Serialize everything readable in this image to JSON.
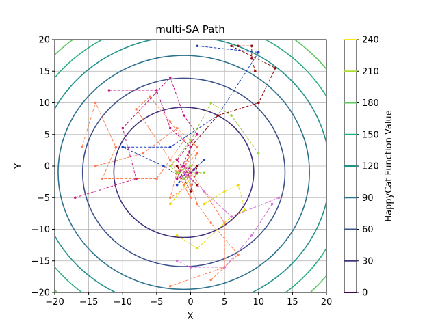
{
  "chart_data": {
    "type": "line",
    "title": "multi-SA Path",
    "xlabel": "X",
    "ylabel": "Y",
    "xlim": [
      -20,
      20
    ],
    "ylim": [
      -20,
      20
    ],
    "xticks": [
      -20,
      -15,
      -10,
      -5,
      0,
      5,
      10,
      15,
      20
    ],
    "yticks": [
      -20,
      -15,
      -10,
      -5,
      0,
      5,
      10,
      15,
      20
    ],
    "grid": true,
    "contour": {
      "center": [
        -1,
        -1
      ],
      "radii": [
        10.3,
        14.9,
        18.5,
        21.5,
        24.2,
        26.6
      ],
      "colors": [
        "#46327e",
        "#3b528b",
        "#2c728e",
        "#21918c",
        "#28ae80",
        "#5ec962"
      ]
    },
    "colorbar": {
      "label": "HappyCat Function Value",
      "ticks": [
        0,
        30,
        60,
        90,
        120,
        150,
        180,
        210,
        240
      ],
      "colors": [
        "#440154",
        "#46327e",
        "#3b528b",
        "#2c728e",
        "#21918c",
        "#28ae80",
        "#5ec962",
        "#addc30",
        "#fde725"
      ]
    },
    "series": [
      {
        "color": "#1f3fbf",
        "points": [
          [
            1,
            19
          ],
          [
            10,
            18
          ],
          [
            4,
            8
          ],
          [
            -3,
            3
          ],
          [
            -10,
            3
          ],
          [
            -4,
            0
          ],
          [
            -1,
            -2
          ],
          [
            2,
            1
          ],
          [
            -2,
            -3
          ],
          [
            0,
            0
          ],
          [
            1,
            -1
          ]
        ]
      },
      {
        "color": "#8b0000",
        "points": [
          [
            6,
            19
          ],
          [
            12.5,
            15.5
          ],
          [
            10,
            10
          ],
          [
            4,
            8
          ],
          [
            0,
            3
          ],
          [
            -1,
            -1
          ],
          [
            1,
            -3
          ],
          [
            -2,
            0
          ],
          [
            0,
            -4
          ],
          [
            1,
            0
          ],
          [
            -1,
            -2
          ]
        ]
      },
      {
        "color": "#9a0e0e",
        "points": [
          [
            7,
            19
          ],
          [
            9,
            19
          ],
          [
            9,
            17
          ],
          [
            9.5,
            15
          ]
        ]
      },
      {
        "color": "#ff7f50",
        "points": [
          [
            -16,
            3
          ],
          [
            -14,
            10
          ],
          [
            -11,
            3
          ],
          [
            -13,
            -2
          ],
          [
            -5,
            -2
          ],
          [
            -1,
            4
          ],
          [
            -3,
            7
          ],
          [
            -6,
            11
          ],
          [
            -8,
            9
          ],
          [
            -3,
            1
          ],
          [
            0,
            -5
          ],
          [
            -1,
            -3
          ],
          [
            1,
            2
          ],
          [
            -2,
            -1
          ],
          [
            0,
            0
          ]
        ]
      },
      {
        "color": "#ff7f50",
        "points": [
          [
            -14,
            0
          ],
          [
            -7,
            2
          ],
          [
            -2,
            6
          ],
          [
            1,
            3
          ],
          [
            -2,
            -1
          ],
          [
            -3,
            -5
          ],
          [
            0,
            -3
          ],
          [
            1,
            -1
          ],
          [
            -1,
            -2
          ]
        ]
      },
      {
        "color": "#ff7f50",
        "points": [
          [
            -3,
            -19
          ],
          [
            5,
            -16
          ],
          [
            5,
            -9
          ],
          [
            2,
            -4
          ],
          [
            0,
            -1
          ],
          [
            -1,
            0
          ]
        ]
      },
      {
        "color": "#ff7f50",
        "points": [
          [
            3,
            -18
          ],
          [
            7,
            -14
          ],
          [
            3,
            -9
          ],
          [
            1,
            -6
          ],
          [
            0,
            -3
          ],
          [
            -1,
            -1
          ]
        ]
      },
      {
        "color": "#e6d800",
        "points": [
          [
            -2,
            -11
          ],
          [
            1,
            -13
          ],
          [
            6,
            -8
          ],
          [
            8,
            -7
          ],
          [
            7,
            -3
          ],
          [
            5,
            -4
          ],
          [
            2,
            -6
          ],
          [
            -3,
            -6
          ],
          [
            0,
            -2
          ],
          [
            -1,
            0
          ]
        ]
      },
      {
        "color": "#9acd32",
        "points": [
          [
            10,
            2
          ],
          [
            6,
            8
          ],
          [
            3,
            10
          ],
          [
            0,
            4
          ],
          [
            -3,
            0
          ],
          [
            -1,
            -2
          ],
          [
            2,
            -1
          ],
          [
            -2,
            -1
          ],
          [
            0,
            0
          ]
        ]
      },
      {
        "color": "#c71585",
        "points": [
          [
            -17,
            -5
          ],
          [
            -8,
            -2
          ],
          [
            -10,
            6
          ],
          [
            -3,
            14
          ],
          [
            -1,
            8
          ],
          [
            1,
            5
          ],
          [
            -2,
            1
          ],
          [
            0,
            -2
          ],
          [
            -1,
            0
          ],
          [
            1,
            -1
          ]
        ]
      },
      {
        "color": "#c71585",
        "points": [
          [
            -12,
            12
          ],
          [
            -5,
            12
          ],
          [
            -3,
            6
          ],
          [
            0,
            3
          ],
          [
            -2,
            -2
          ],
          [
            0,
            -1
          ],
          [
            -1,
            0
          ]
        ]
      },
      {
        "color": "#da70d6",
        "points": [
          [
            12,
            -6
          ],
          [
            9,
            -11
          ],
          [
            5,
            -16
          ],
          [
            0,
            -16
          ],
          [
            -2,
            -15
          ]
        ]
      },
      {
        "color": "#da70d6",
        "points": [
          [
            13,
            -5
          ],
          [
            6,
            -8
          ],
          [
            2,
            -4
          ],
          [
            0,
            -2
          ],
          [
            -1,
            -1
          ]
        ]
      }
    ]
  }
}
